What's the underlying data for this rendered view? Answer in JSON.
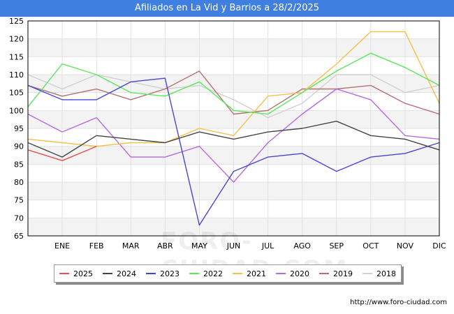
{
  "title": "Afiliados en La Vid y Barrios a 28/2/2025",
  "source": "http://www.foro-ciudad.com",
  "watermark": "FORO-CIUDAD.COM",
  "chart_data": {
    "type": "line",
    "categories": [
      "",
      "ENE",
      "FEB",
      "MAR",
      "ABR",
      "MAY",
      "JUN",
      "JUL",
      "AGO",
      "SEP",
      "OCT",
      "NOV",
      "DIC"
    ],
    "ylim": [
      65,
      125
    ],
    "yticks": [
      65,
      70,
      75,
      80,
      85,
      90,
      95,
      100,
      105,
      110,
      115,
      120,
      125
    ],
    "grid": true,
    "legend_position": "bottom",
    "series": [
      {
        "name": "2018",
        "color": "#d0d0d0",
        "values": [
          110,
          106,
          110,
          108,
          106,
          107,
          103,
          98,
          102,
          110,
          110,
          105,
          107
        ]
      },
      {
        "name": "2019",
        "color": "#b37272",
        "values": [
          107,
          104,
          106,
          103,
          106,
          111,
          99,
          100,
          106,
          106,
          107,
          102,
          99
        ]
      },
      {
        "name": "2020",
        "color": "#b56ae0",
        "values": [
          99,
          94,
          98,
          87,
          87,
          90,
          80,
          91,
          99,
          106,
          103,
          93,
          92
        ]
      },
      {
        "name": "2021",
        "color": "#f5c04a",
        "values": [
          92,
          91,
          90,
          91,
          91,
          95,
          93,
          104,
          105,
          113,
          122,
          122,
          102
        ]
      },
      {
        "name": "2022",
        "color": "#5ce85c",
        "values": [
          101,
          113,
          110,
          105,
          104,
          108,
          100,
          99,
          105,
          111,
          116,
          112,
          107
        ]
      },
      {
        "name": "2023",
        "color": "#4747d6",
        "values": [
          107,
          103,
          103,
          108,
          109,
          68,
          83,
          87,
          88,
          83,
          87,
          88,
          91
        ]
      },
      {
        "name": "2024",
        "color": "#444444",
        "values": [
          91,
          87,
          93,
          92,
          91,
          94,
          92,
          94,
          95,
          97,
          93,
          92,
          89
        ]
      },
      {
        "name": "2025",
        "color": "#e85050",
        "values": [
          89,
          86,
          90,
          null,
          null,
          null,
          null,
          null,
          null,
          null,
          null,
          null,
          null
        ]
      }
    ],
    "legend_order": [
      "2025",
      "2024",
      "2023",
      "2022",
      "2021",
      "2020",
      "2019",
      "2018"
    ]
  }
}
